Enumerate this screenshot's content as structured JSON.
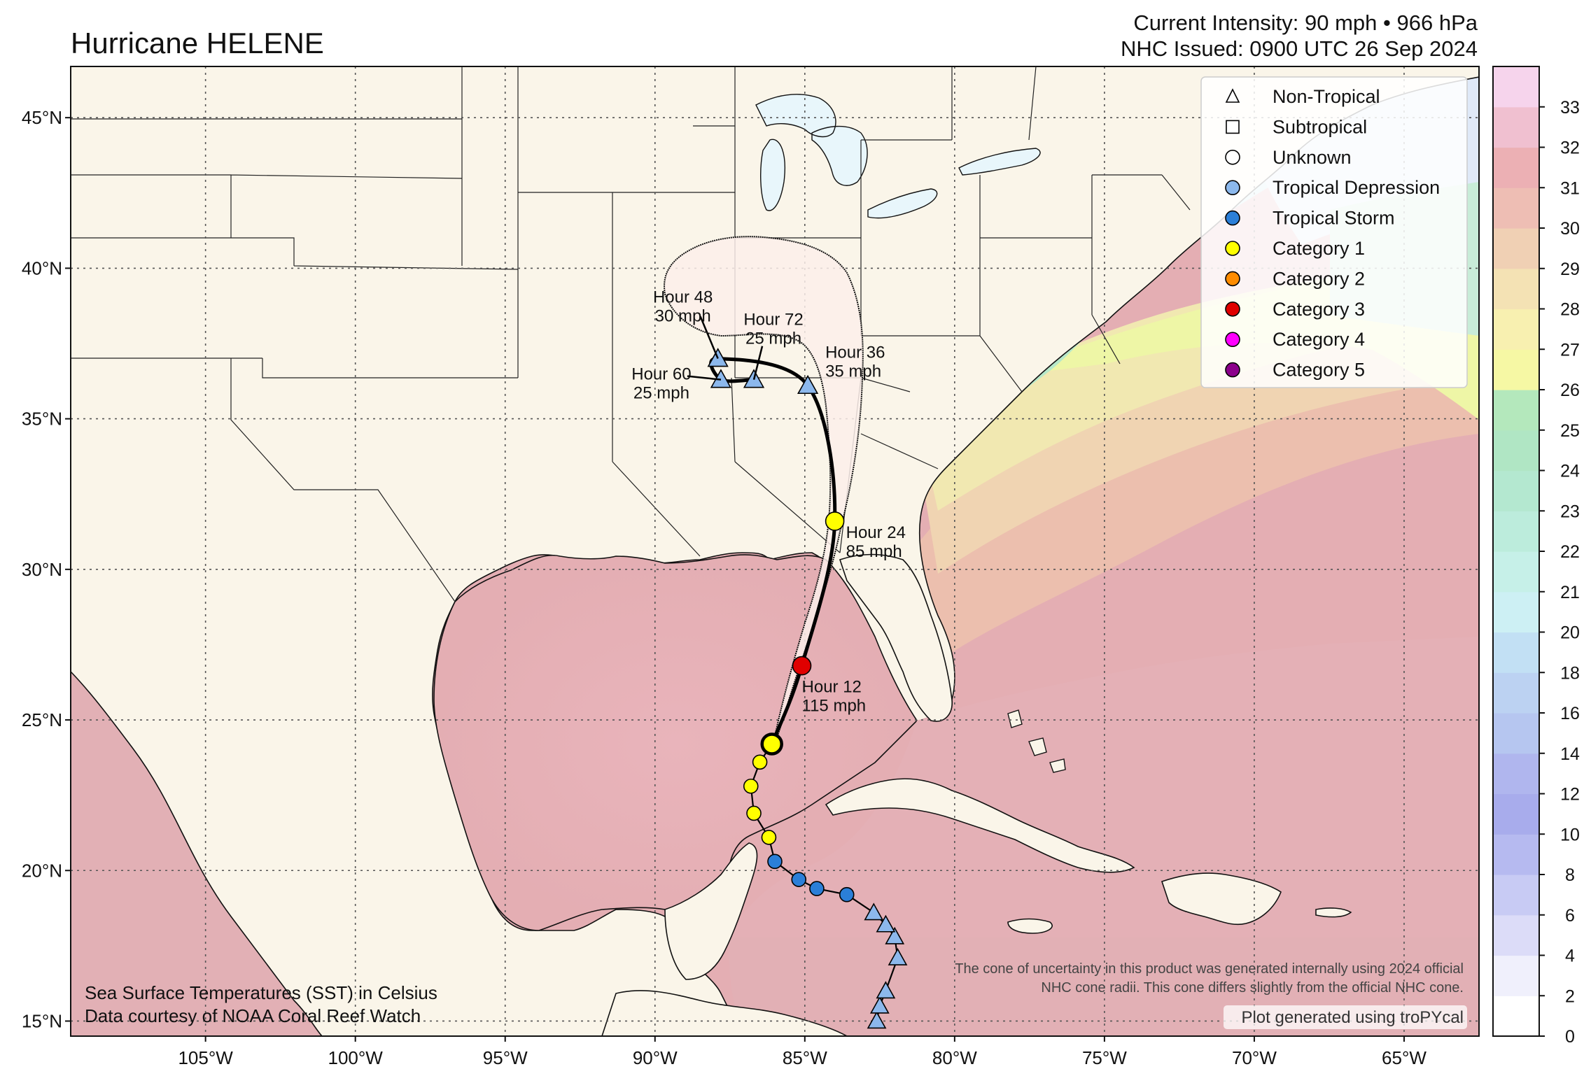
{
  "header": {
    "title": "Hurricane HELENE",
    "intensity": "Current Intensity: 90 mph • 966 hPa",
    "issued": "NHC Issued: 0900 UTC 26 Sep 2024"
  },
  "axes": {
    "lon_ticks": [
      {
        "lon": -105,
        "label": "105°W"
      },
      {
        "lon": -100,
        "label": "100°W"
      },
      {
        "lon": -95,
        "label": "95°W"
      },
      {
        "lon": -90,
        "label": "90°W"
      },
      {
        "lon": -85,
        "label": "85°W"
      },
      {
        "lon": -80,
        "label": "80°W"
      },
      {
        "lon": -75,
        "label": "75°W"
      },
      {
        "lon": -70,
        "label": "70°W"
      },
      {
        "lon": -65,
        "label": "65°W"
      }
    ],
    "lat_ticks": [
      {
        "lat": 45,
        "label": "45°N"
      },
      {
        "lat": 40,
        "label": "40°N"
      },
      {
        "lat": 35,
        "label": "35°N"
      },
      {
        "lat": 30,
        "label": "30°N"
      },
      {
        "lat": 25,
        "label": "25°N"
      },
      {
        "lat": 20,
        "label": "20°N"
      },
      {
        "lat": 15,
        "label": "15°N"
      }
    ],
    "extent": {
      "lon": [
        -109.5,
        -62.5
      ],
      "lat": [
        14.5,
        46.7
      ]
    }
  },
  "legend": [
    {
      "symbol": "triangle",
      "color": "#ffffff",
      "label": "Non-Tropical"
    },
    {
      "symbol": "square",
      "color": "#ffffff",
      "label": "Subtropical"
    },
    {
      "symbol": "circle",
      "color": "#ffffff",
      "label": "Unknown"
    },
    {
      "symbol": "circle",
      "color": "#8cb8ec",
      "label": "Tropical Depression"
    },
    {
      "symbol": "circle",
      "color": "#2b7fd8",
      "label": "Tropical Storm"
    },
    {
      "symbol": "circle",
      "color": "#ffff00",
      "label": "Category 1"
    },
    {
      "symbol": "circle",
      "color": "#ff8c00",
      "label": "Category 2"
    },
    {
      "symbol": "circle",
      "color": "#e00000",
      "label": "Category 3"
    },
    {
      "symbol": "circle",
      "color": "#ff00ff",
      "label": "Category 4"
    },
    {
      "symbol": "circle",
      "color": "#8b008b",
      "label": "Category 5"
    }
  ],
  "colorbar": {
    "ticks": [
      "0",
      "2",
      "4",
      "6",
      "8",
      "10",
      "12",
      "14",
      "16",
      "18",
      "20",
      "21",
      "22",
      "23",
      "24",
      "25",
      "26",
      "27",
      "28",
      "29",
      "30",
      "31",
      "32",
      "33"
    ],
    "colors": [
      "#ffffff",
      "#f0f0fc",
      "#dcdcf8",
      "#c8cbf4",
      "#b6baf0",
      "#a8acec",
      "#b0b6ee",
      "#b6c6f0",
      "#bcd2f2",
      "#c2e0f4",
      "#cdf0f4",
      "#c6f0e8",
      "#bcecdc",
      "#b4e8d0",
      "#b0e6c4",
      "#b4e8bc",
      "#f6f8a4",
      "#f8f0b0",
      "#f4e2b4",
      "#f0d0b4",
      "#eebeb4",
      "#ecb0b4",
      "#f0c0d0",
      "#f6d4ec"
    ]
  },
  "past_track": [
    {
      "lat": 15.0,
      "lon": -82.6,
      "type": "TD"
    },
    {
      "lat": 15.5,
      "lon": -82.5,
      "type": "TD"
    },
    {
      "lat": 16.0,
      "lon": -82.3,
      "type": "TD"
    },
    {
      "lat": 17.1,
      "lon": -81.9,
      "type": "TD"
    },
    {
      "lat": 17.8,
      "lon": -82.0,
      "type": "TD"
    },
    {
      "lat": 18.2,
      "lon": -82.3,
      "type": "TD"
    },
    {
      "lat": 18.6,
      "lon": -82.7,
      "type": "TD"
    },
    {
      "lat": 19.2,
      "lon": -83.6,
      "type": "TS"
    },
    {
      "lat": 19.4,
      "lon": -84.6,
      "type": "TS"
    },
    {
      "lat": 19.7,
      "lon": -85.2,
      "type": "TS"
    },
    {
      "lat": 20.3,
      "lon": -86.0,
      "type": "TS"
    },
    {
      "lat": 21.1,
      "lon": -86.2,
      "type": "H1"
    },
    {
      "lat": 21.9,
      "lon": -86.7,
      "type": "H1"
    },
    {
      "lat": 22.8,
      "lon": -86.8,
      "type": "H1"
    },
    {
      "lat": 23.6,
      "lon": -86.5,
      "type": "H1"
    },
    {
      "lat": 24.2,
      "lon": -86.1,
      "type": "H1"
    }
  ],
  "forecast": [
    {
      "lat": 24.2,
      "lon": -86.1,
      "type": "H1",
      "label": ""
    },
    {
      "lat": 26.8,
      "lon": -85.1,
      "type": "H3",
      "label": "Hour 12\n115 mph"
    },
    {
      "lat": 31.6,
      "lon": -84.0,
      "type": "H1",
      "label": "Hour 24\n85 mph"
    },
    {
      "lat": 36.1,
      "lon": -84.9,
      "type": "NT",
      "label": "Hour 36\n35 mph"
    },
    {
      "lat": 37.0,
      "lon": -87.9,
      "type": "NT",
      "label": "Hour 48\n30 mph"
    },
    {
      "lat": 36.3,
      "lon": -87.8,
      "type": "NT",
      "label": "Hour 60\n25 mph"
    },
    {
      "lat": 36.3,
      "lon": -86.7,
      "type": "NT",
      "label": "Hour 72\n25 mph"
    }
  ],
  "footer": {
    "sst_line1": "Sea Surface Temperatures (SST) in Celsius",
    "sst_line2": "Data courtesy of NOAA Coral Reef Watch",
    "cone_line1": "The cone of uncertainty in this product was generated internally using 2024 official",
    "cone_line2": "NHC cone radii. This cone differs slightly from the official NHC cone.",
    "credit": "Plot generated using troPYcal"
  }
}
